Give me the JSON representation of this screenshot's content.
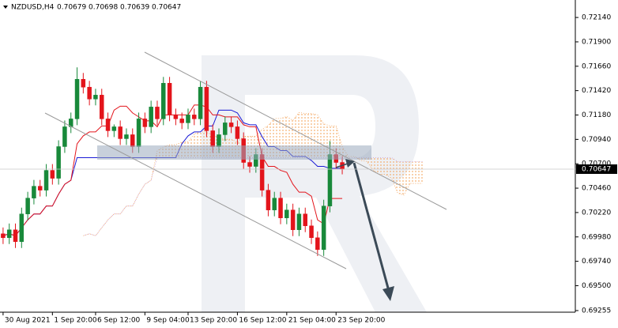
{
  "chart_data": {
    "type": "candlestick",
    "symbol": "NZDUSD,H4",
    "quote": [
      0.70679,
      0.70698,
      0.70639,
      0.70647
    ],
    "last_price": 0.70647,
    "up_color": "#18893a",
    "down_color": "#e3141b",
    "open": [
      0.70011,
      0.69972,
      0.7005,
      0.69933,
      0.70206,
      0.70362,
      0.70479,
      0.7044,
      0.70635,
      0.70557,
      0.70869,
      0.71064,
      0.71142,
      0.71532,
      0.71454,
      0.71337,
      0.71376,
      0.71142,
      0.71025,
      0.71064,
      0.70947,
      0.70986,
      0.70869,
      0.71142,
      0.71064,
      0.71259,
      0.71142,
      0.71493,
      0.71181,
      0.71142,
      0.71103,
      0.71181,
      0.71142,
      0.71454,
      0.71025,
      0.70869,
      0.70986,
      0.71103,
      0.71064,
      0.70947,
      0.70713,
      0.70674,
      0.70791,
      0.7044,
      0.70245,
      0.70362,
      0.70167,
      0.70245,
      0.7005,
      0.70206,
      0.70089,
      0.69972,
      0.69855,
      0.70284,
      0.70791,
      0.70713
    ],
    "high": [
      0.70073,
      0.70112,
      0.70112,
      0.70268,
      0.70424,
      0.70541,
      0.70541,
      0.70697,
      0.70697,
      0.70931,
      0.71126,
      0.71204,
      0.71649,
      0.71594,
      0.71516,
      0.71438,
      0.71438,
      0.71204,
      0.71087,
      0.71126,
      0.71048,
      0.71048,
      0.71204,
      0.71204,
      0.71321,
      0.71321,
      0.71555,
      0.71555,
      0.71243,
      0.71204,
      0.71243,
      0.71243,
      0.71516,
      0.71516,
      0.71087,
      0.71048,
      0.71165,
      0.71165,
      0.71126,
      0.71009,
      0.70775,
      0.70853,
      0.70853,
      0.70502,
      0.70424,
      0.70424,
      0.70307,
      0.70307,
      0.70268,
      0.70268,
      0.70151,
      0.70034,
      0.70346,
      0.70924,
      0.70853,
      0.70775
    ],
    "low": [
      0.6991,
      0.6991,
      0.69871,
      0.69871,
      0.70144,
      0.703,
      0.70378,
      0.70378,
      0.70495,
      0.70495,
      0.70807,
      0.71002,
      0.7108,
      0.71392,
      0.71275,
      0.71275,
      0.7108,
      0.70963,
      0.70963,
      0.70885,
      0.70885,
      0.70807,
      0.70807,
      0.71002,
      0.71002,
      0.7108,
      0.7108,
      0.71119,
      0.7108,
      0.71041,
      0.71041,
      0.7108,
      0.7108,
      0.70963,
      0.70807,
      0.70807,
      0.70924,
      0.71002,
      0.70885,
      0.70651,
      0.70612,
      0.70612,
      0.70378,
      0.70183,
      0.70183,
      0.70105,
      0.70105,
      0.69988,
      0.69988,
      0.70027,
      0.6991,
      0.69793,
      0.69793,
      0.70222,
      0.70651,
      0.70596
    ],
    "close": [
      0.69972,
      0.7005,
      0.69933,
      0.70206,
      0.70362,
      0.70479,
      0.7044,
      0.70635,
      0.70557,
      0.70869,
      0.71064,
      0.71142,
      0.71532,
      0.71454,
      0.71337,
      0.71376,
      0.71142,
      0.71025,
      0.71064,
      0.70947,
      0.70986,
      0.70869,
      0.71142,
      0.71064,
      0.71259,
      0.71142,
      0.71493,
      0.71181,
      0.71142,
      0.71103,
      0.71181,
      0.71142,
      0.71454,
      0.71025,
      0.70869,
      0.70986,
      0.71103,
      0.71064,
      0.70947,
      0.70713,
      0.70674,
      0.70791,
      0.7044,
      0.70245,
      0.70362,
      0.70167,
      0.70245,
      0.7005,
      0.70206,
      0.70089,
      0.69972,
      0.69855,
      0.70284,
      0.70791,
      0.70713,
      0.70647
    ],
    "xlim": [
      -0.5,
      92.8
    ],
    "xticks": [
      {
        "value": 0,
        "label": "30 Aug 2021"
      },
      {
        "value": 8,
        "label": "1 Sep 20:00"
      },
      {
        "value": 15,
        "label": "6 Sep 12:00"
      },
      {
        "value": 23,
        "label": "9 Sep 04:00"
      },
      {
        "value": 30,
        "label": "13 Sep 20:00"
      },
      {
        "value": 38,
        "label": "16 Sep 12:00"
      },
      {
        "value": 46,
        "label": "21 Sep 04:00"
      },
      {
        "value": 54,
        "label": "23 Sep 20:00"
      }
    ],
    "ylim": [
      0.69239,
      0.72312
    ],
    "yticks": [
      {
        "value": 0.7214,
        "label": "0.72140"
      },
      {
        "value": 0.719,
        "label": "0.71900"
      },
      {
        "value": 0.7166,
        "label": "0.71660"
      },
      {
        "value": 0.7142,
        "label": "0.71420"
      },
      {
        "value": 0.7118,
        "label": "0.71180"
      },
      {
        "value": 0.7094,
        "label": "0.70940"
      },
      {
        "value": 0.707,
        "label": "0.70700"
      },
      {
        "value": 0.7046,
        "label": "0.70460"
      },
      {
        "value": 0.7022,
        "label": "0.70220"
      },
      {
        "value": 0.6998,
        "label": "0.69980"
      },
      {
        "value": 0.6974,
        "label": "0.69740"
      },
      {
        "value": 0.695,
        "label": "0.69500"
      },
      0.69255
    ]
  }
}
